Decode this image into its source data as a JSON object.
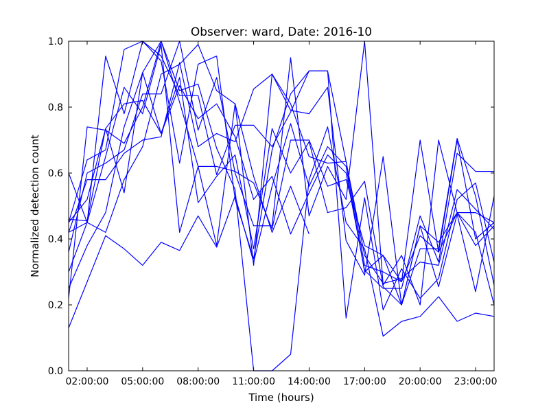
{
  "chart_data": {
    "type": "line",
    "title": "Observer: ward, Date: 2016-10",
    "xlabel": "Time (hours)",
    "ylabel": "Normalized detection count",
    "x_axis": "time of day (hours)",
    "xlim": [
      1,
      24
    ],
    "ylim": [
      0.0,
      1.0
    ],
    "grid": false,
    "legend": "none",
    "x_tick_values": [
      2,
      5,
      8,
      11,
      14,
      17,
      20,
      23
    ],
    "x_tick_labels": [
      "02:00:00",
      "05:00:00",
      "08:00:00",
      "11:00:00",
      "14:00:00",
      "17:00:00",
      "20:00:00",
      "23:00:00"
    ],
    "y_tick_values": [
      0.0,
      0.2,
      0.4,
      0.6,
      0.8,
      1.0
    ],
    "y_tick_labels": [
      "0.0",
      "0.2",
      "0.4",
      "0.6",
      "0.8",
      "1.0"
    ],
    "line_color": "#0000ff",
    "series": [
      {
        "x": [
          1,
          2,
          3,
          4,
          5,
          6,
          7,
          8,
          9,
          10,
          11,
          12,
          13,
          14
        ],
        "values": [
          0.42,
          0.45,
          0.42,
          0.58,
          0.68,
          0.9,
          0.93,
          0.99,
          0.85,
          0.81,
          0.59,
          0.42,
          0.56,
          0.415
        ]
      },
      {
        "x": [
          1,
          2,
          3,
          4,
          5,
          6,
          7,
          8,
          9,
          10,
          11,
          12,
          13,
          14,
          15,
          16,
          17,
          18,
          19,
          20,
          21,
          22,
          23,
          24
        ],
        "values": [
          0.13,
          0.27,
          0.41,
          0.37,
          0.32,
          0.39,
          0.365,
          0.47,
          0.375,
          0.53,
          0.33,
          0.56,
          0.75,
          0.56,
          0.68,
          0.62,
          0.3,
          0.35,
          0.2,
          0.44,
          0.39,
          0.48,
          0.42,
          0.2
        ]
      },
      {
        "x": [
          1,
          2,
          3,
          4,
          5,
          6,
          7,
          8,
          9,
          10,
          11,
          12,
          13,
          14,
          15,
          16,
          17,
          18,
          19,
          20,
          21,
          22,
          23,
          24
        ],
        "values": [
          0.22,
          0.74,
          0.73,
          0.69,
          0.8,
          1.0,
          0.85,
          0.87,
          0.675,
          0.55,
          0.0,
          0.0,
          0.05,
          0.58,
          0.74,
          0.45,
          0.37,
          0.105,
          0.15,
          0.165,
          0.225,
          0.15,
          0.175,
          0.165
        ]
      },
      {
        "x": [
          1,
          2,
          3,
          4,
          5,
          6,
          7,
          8,
          9,
          10,
          11,
          12,
          13,
          14,
          15,
          16,
          17,
          18,
          19,
          20,
          21,
          22,
          23,
          24
        ],
        "values": [
          0.3,
          0.45,
          0.955,
          0.78,
          1.0,
          0.94,
          0.63,
          0.93,
          0.955,
          0.52,
          0.34,
          0.67,
          0.84,
          0.91,
          0.91,
          0.16,
          0.525,
          0.185,
          0.31,
          0.22,
          0.28,
          0.52,
          0.57,
          0.33
        ]
      },
      {
        "x": [
          1,
          2,
          3,
          4,
          5,
          6,
          7,
          8,
          9,
          10,
          11,
          12,
          13,
          14,
          15,
          16,
          17,
          18,
          19,
          20,
          21,
          22,
          23,
          24
        ],
        "values": [
          0.46,
          0.455,
          0.735,
          0.54,
          0.905,
          1.0,
          0.815,
          0.62,
          0.62,
          0.605,
          0.57,
          0.43,
          0.7,
          0.7,
          0.56,
          0.58,
          0.38,
          0.35,
          0.27,
          0.7,
          0.36,
          0.7,
          0.4,
          0.45
        ]
      },
      {
        "x": [
          1,
          2,
          3,
          4,
          5,
          6,
          7,
          8,
          9,
          10,
          11,
          12,
          13,
          14,
          15,
          16,
          17,
          18,
          19,
          20,
          21,
          22,
          23,
          24
        ],
        "values": [
          0.36,
          0.6,
          0.63,
          0.67,
          0.84,
          0.84,
          1.0,
          0.73,
          0.89,
          0.6,
          0.44,
          0.44,
          0.95,
          0.47,
          0.62,
          0.52,
          1.0,
          0.26,
          0.35,
          0.2,
          0.7,
          0.48,
          0.38,
          0.44
        ]
      },
      {
        "x": [
          1,
          2,
          3,
          4,
          5,
          6,
          7,
          8,
          9,
          10,
          11,
          12,
          13,
          14,
          15,
          16,
          17,
          18,
          19,
          20,
          21,
          22,
          23,
          24
        ],
        "values": [
          0.6,
          0.45,
          0.65,
          0.86,
          0.78,
          0.99,
          0.42,
          0.62,
          0.38,
          0.81,
          0.32,
          0.9,
          0.79,
          0.78,
          0.86,
          0.395,
          0.29,
          0.65,
          0.2,
          0.44,
          0.255,
          0.475,
          0.24,
          0.53
        ]
      },
      {
        "x": [
          1,
          2,
          3,
          4,
          5,
          6,
          7,
          8,
          9,
          10,
          11,
          12,
          13,
          14,
          15,
          16,
          17,
          18,
          19,
          20,
          21,
          22,
          23,
          24
        ],
        "values": [
          0.45,
          0.64,
          0.67,
          0.975,
          1.0,
          0.955,
          0.835,
          0.835,
          0.595,
          0.745,
          0.745,
          0.68,
          0.785,
          0.91,
          0.91,
          0.635,
          0.32,
          0.3,
          0.27,
          0.41,
          0.36,
          0.48,
          0.48,
          0.45
        ]
      },
      {
        "x": [
          1,
          2,
          3,
          4,
          5,
          6,
          7,
          8,
          9,
          10,
          11,
          12,
          13,
          14,
          15,
          16,
          17,
          18,
          19,
          20,
          21,
          22,
          23,
          24
        ],
        "values": [
          0.45,
          0.52,
          0.735,
          0.81,
          0.82,
          0.72,
          0.865,
          0.765,
          0.81,
          0.71,
          0.52,
          0.59,
          0.415,
          0.54,
          0.655,
          0.6,
          0.305,
          0.25,
          0.25,
          0.47,
          0.33,
          0.66,
          0.605,
          0.605
        ]
      },
      {
        "x": [
          1,
          2,
          3,
          4,
          5,
          6,
          7,
          8,
          9,
          10,
          11,
          12,
          13,
          14,
          15,
          16,
          17,
          18,
          19,
          20,
          21,
          22,
          23,
          24
        ],
        "values": [
          0.25,
          0.38,
          0.48,
          0.74,
          0.905,
          0.72,
          0.89,
          0.51,
          0.59,
          0.655,
          0.37,
          0.735,
          0.6,
          0.695,
          0.48,
          0.495,
          0.575,
          0.255,
          0.2,
          0.37,
          0.37,
          0.705,
          0.53,
          0.26
        ]
      },
      {
        "x": [
          1,
          2,
          3,
          4,
          5,
          6,
          7,
          8,
          9,
          10,
          11,
          12,
          13,
          14,
          15,
          16,
          17,
          18,
          19,
          20,
          21,
          22,
          23,
          24
        ],
        "values": [
          0.42,
          0.58,
          0.58,
          0.66,
          0.7,
          0.71,
          0.935,
          0.68,
          0.72,
          0.695,
          0.855,
          0.9,
          0.81,
          0.65,
          0.63,
          0.635,
          0.35,
          0.265,
          0.28,
          0.33,
          0.32,
          0.55,
          0.49,
          0.43
        ]
      }
    ]
  }
}
